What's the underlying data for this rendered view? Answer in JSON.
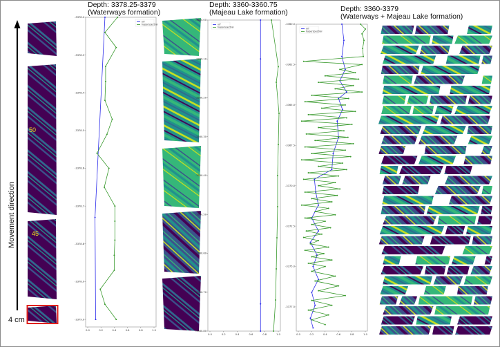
{
  "panels": {
    "waterways": {
      "title_line1": "Depth: 3378.25-3379",
      "title_line2": "(Waterways formation)"
    },
    "majeau": {
      "title_line1": "Depth: 3360-3360.75",
      "title_line2": "(Majeau Lake formation)"
    },
    "combined": {
      "title_line1": "Depth: 3360-3379",
      "title_line2": "(Waterways + Majeau Lake formation)"
    }
  },
  "annotations": {
    "movement_label": "Movement direction",
    "scale_label": "4 cm",
    "core_marks": [
      "50",
      "45"
    ],
    "highlight_box_color": "#e0201b"
  },
  "colors": {
    "xrf": "#2b2bea",
    "hyperspectral": "#3a9a2e",
    "core_dark": "#440154",
    "core_teal": "#21918c",
    "core_green": "#35b779",
    "core_yellow": "#c8e020"
  },
  "chart_data": [
    {
      "type": "line",
      "panel": "waterways",
      "orientation": "depth-vertical",
      "xlim": [
        0,
        1.0
      ],
      "ylim": [
        -3379.02,
        -3378.2
      ],
      "xticks": [
        "0.0",
        "0.2",
        "0.4",
        "0.6",
        "0.8",
        "1.0"
      ],
      "yticks": [
        "-3378.2",
        "-3378.3",
        "-3378.4",
        "-3378.5",
        "-3378.6",
        "-3378.7",
        "-3378.8",
        "-3378.9",
        "-3379.0"
      ],
      "legend": "top-right",
      "series": [
        {
          "name": "xrf",
          "points": [
            [
              0.26,
              -3378.2
            ],
            [
              0.11,
              -3378.73
            ],
            [
              0.12,
              -3379.0
            ]
          ]
        },
        {
          "name": "hyperspectral",
          "points": [
            [
              0.45,
              -3378.2
            ],
            [
              0.26,
              -3378.24
            ],
            [
              0.43,
              -3378.28
            ],
            [
              0.27,
              -3378.33
            ],
            [
              0.27,
              -3378.37
            ],
            [
              0.26,
              -3378.42
            ],
            [
              0.37,
              -3378.47
            ],
            [
              0.29,
              -3378.51
            ],
            [
              0.14,
              -3378.56
            ],
            [
              0.32,
              -3378.6
            ],
            [
              0.25,
              -3378.65
            ],
            [
              0.41,
              -3378.7
            ],
            [
              0.41,
              -3378.74
            ],
            [
              0.41,
              -3378.79
            ],
            [
              0.4,
              -3378.83
            ],
            [
              0.4,
              -3378.87
            ],
            [
              0.19,
              -3378.92
            ],
            [
              0.26,
              -3378.96
            ],
            [
              0.43,
              -3379.0
            ]
          ]
        }
      ]
    },
    {
      "type": "line",
      "panel": "majeau",
      "orientation": "depth-vertical",
      "xlim": [
        0,
        1.0
      ],
      "ylim": [
        -3360.8,
        -3360.0
      ],
      "xticks": [
        "0.0",
        "0.2",
        "0.4",
        "0.6",
        "0.8",
        "1.0"
      ],
      "yticks": [
        "-3360.00",
        "-3360.10",
        "-3360.20",
        "-3360.30",
        "-3360.40",
        "-3360.50",
        "-3360.60",
        "-3360.70",
        "-3360.80"
      ],
      "legend": "top-left",
      "series": [
        {
          "name": "xrf",
          "points": [
            [
              0.74,
              -3360.0
            ],
            [
              0.74,
              -3360.1
            ],
            [
              0.74,
              -3360.73
            ],
            [
              0.74,
              -3360.8
            ]
          ]
        },
        {
          "name": "hyperspectral",
          "points": [
            [
              0.9,
              -3360.0
            ],
            [
              1.0,
              -3360.12
            ],
            [
              0.97,
              -3360.16
            ],
            [
              1.01,
              -3360.24
            ],
            [
              1.0,
              -3360.32
            ],
            [
              0.99,
              -3360.4
            ],
            [
              0.99,
              -3360.48
            ],
            [
              0.98,
              -3360.56
            ],
            [
              0.97,
              -3360.64
            ],
            [
              0.96,
              -3360.72
            ],
            [
              0.93,
              -3360.8
            ]
          ]
        }
      ]
    },
    {
      "type": "line",
      "panel": "combined",
      "orientation": "depth-vertical",
      "xlim": [
        0,
        1.0
      ],
      "ylim": [
        -3379.0,
        -3360.0
      ],
      "xticks": [
        "0.0",
        "0.2",
        "0.4",
        "0.6",
        "0.8",
        "1.0"
      ],
      "yticks": [
        "-3360.0",
        "-3362.5",
        "-3365.0",
        "-3367.5",
        "-3370.0",
        "-3372.5",
        "-3375.0",
        "-3377.5"
      ],
      "legend": "top-left",
      "series": [
        {
          "name": "xrf",
          "points": [
            [
              0.65,
              -3360.0
            ],
            [
              0.68,
              -3361.0
            ],
            [
              0.65,
              -3362.0
            ],
            [
              0.7,
              -3362.8
            ],
            [
              0.62,
              -3363.5
            ],
            [
              0.72,
              -3364.2
            ],
            [
              0.6,
              -3364.6
            ],
            [
              0.66,
              -3365.3
            ],
            [
              0.58,
              -3366.0
            ],
            [
              0.6,
              -3367.0
            ],
            [
              0.52,
              -3368.0
            ],
            [
              0.5,
              -3369.0
            ],
            [
              0.24,
              -3369.6
            ],
            [
              0.26,
              -3370.4
            ],
            [
              0.3,
              -3371.2
            ],
            [
              0.2,
              -3372.0
            ],
            [
              0.3,
              -3372.8
            ],
            [
              0.18,
              -3373.5
            ],
            [
              0.28,
              -3374.3
            ],
            [
              0.22,
              -3375.0
            ],
            [
              0.3,
              -3375.8
            ],
            [
              0.2,
              -3376.6
            ],
            [
              0.25,
              -3377.4
            ],
            [
              0.18,
              -3378.2
            ],
            [
              0.22,
              -3378.8
            ]
          ]
        },
        {
          "name": "hyperspectral",
          "points": [
            [
              0.93,
              -3360
            ],
            [
              1.0,
              -3360.3
            ],
            [
              0.95,
              -3360.6
            ],
            [
              0.98,
              -3361
            ],
            [
              0.96,
              -3361.5
            ],
            [
              0.97,
              -3362
            ],
            [
              0.08,
              -3362.3
            ],
            [
              0.95,
              -3362.5
            ],
            [
              0.62,
              -3362.8
            ],
            [
              0.85,
              -3363
            ],
            [
              0.4,
              -3363.2
            ],
            [
              0.9,
              -3363.4
            ],
            [
              0.3,
              -3363.6
            ],
            [
              0.82,
              -3363.8
            ],
            [
              0.55,
              -3364
            ],
            [
              0.95,
              -3364.2
            ],
            [
              0.2,
              -3364.4
            ],
            [
              0.75,
              -3364.6
            ],
            [
              0.1,
              -3364.8
            ],
            [
              0.7,
              -3365
            ],
            [
              0.35,
              -3365.2
            ],
            [
              0.85,
              -3365.4
            ],
            [
              0.15,
              -3365.6
            ],
            [
              0.72,
              -3365.8
            ],
            [
              0.05,
              -3366
            ],
            [
              0.8,
              -3366.2
            ],
            [
              0.3,
              -3366.4
            ],
            [
              0.68,
              -3366.6
            ],
            [
              0.12,
              -3366.8
            ],
            [
              0.74,
              -3367
            ],
            [
              0.25,
              -3367.2
            ],
            [
              0.82,
              -3367.4
            ],
            [
              0.1,
              -3367.6
            ],
            [
              0.7,
              -3367.8
            ],
            [
              0.2,
              -3368
            ],
            [
              0.78,
              -3368.2
            ],
            [
              0.05,
              -3368.4
            ],
            [
              0.66,
              -3368.6
            ],
            [
              0.3,
              -3368.8
            ],
            [
              0.72,
              -3369
            ],
            [
              0.15,
              -3369.2
            ],
            [
              0.6,
              -3369.4
            ],
            [
              0.08,
              -3369.6
            ],
            [
              0.55,
              -3369.8
            ],
            [
              0.3,
              -3370
            ],
            [
              0.62,
              -3370.2
            ],
            [
              0.1,
              -3370.4
            ],
            [
              0.58,
              -3370.6
            ],
            [
              0.2,
              -3370.8
            ],
            [
              0.5,
              -3371
            ],
            [
              0.05,
              -3371.2
            ],
            [
              0.45,
              -3371.4
            ],
            [
              0.25,
              -3371.6
            ],
            [
              0.55,
              -3371.8
            ],
            [
              0.1,
              -3372
            ],
            [
              0.4,
              -3372.2
            ],
            [
              0.2,
              -3372.4
            ],
            [
              0.48,
              -3372.6
            ],
            [
              0.12,
              -3372.8
            ],
            [
              0.35,
              -3373
            ],
            [
              0.08,
              -3373.2
            ],
            [
              0.3,
              -3373.4
            ],
            [
              0.18,
              -3373.6
            ],
            [
              0.45,
              -3373.8
            ],
            [
              0.1,
              -3374
            ],
            [
              0.38,
              -3374.2
            ],
            [
              0.2,
              -3374.4
            ],
            [
              0.5,
              -3374.6
            ],
            [
              0.15,
              -3374.8
            ],
            [
              0.4,
              -3375
            ],
            [
              0.2,
              -3375.3
            ],
            [
              0.55,
              -3375.6
            ],
            [
              0.25,
              -3375.9
            ],
            [
              0.6,
              -3376.2
            ],
            [
              0.3,
              -3376.5
            ],
            [
              0.7,
              -3376.8
            ],
            [
              0.2,
              -3377.1
            ],
            [
              0.5,
              -3377.4
            ],
            [
              0.15,
              -3377.7
            ],
            [
              0.45,
              -3378
            ],
            [
              0.2,
              -3378.3
            ],
            [
              0.4,
              -3378.6
            ]
          ]
        }
      ]
    }
  ]
}
